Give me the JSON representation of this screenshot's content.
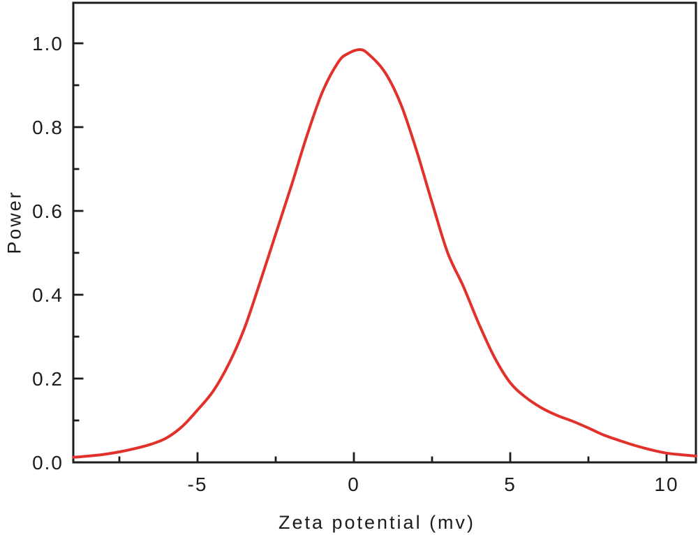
{
  "colors": {
    "curve": "#e2312b",
    "axis": "#1c1c1c",
    "background": "#ffffff",
    "text": "#1c1c1c"
  },
  "chart_data": {
    "type": "line",
    "title": "",
    "xlabel": "Zeta potential (mv)",
    "ylabel": "Power",
    "xlim": [
      -8.97,
      10.94
    ],
    "ylim": [
      0,
      1.09
    ],
    "grid": false,
    "legend": "none",
    "frame": "full-box",
    "x_ticks": {
      "major": [
        -5,
        0,
        5,
        10
      ],
      "minor": [
        -7.5,
        -2.5,
        2.5,
        7.5
      ],
      "labels": [
        "-5",
        "0",
        "5",
        "10"
      ]
    },
    "y_ticks": {
      "major": [
        0,
        0.2,
        0.4,
        0.6,
        0.8,
        1.0
      ],
      "minor": [
        0.1,
        0.3,
        0.5,
        0.7,
        0.9
      ],
      "labels": [
        "0.0",
        "0.2",
        "0.4",
        "0.6",
        "0.8",
        "1.0"
      ]
    },
    "peak": {
      "x": 0.2,
      "y": 0.985
    },
    "series": [
      {
        "name": "Power",
        "color": "#e2312b",
        "x": [
          -8.97,
          -8.5,
          -8.0,
          -7.5,
          -7.0,
          -6.5,
          -6.0,
          -5.5,
          -5.0,
          -4.5,
          -4.0,
          -3.5,
          -3.0,
          -2.5,
          -2.0,
          -1.5,
          -1.0,
          -0.5,
          -0.2,
          0.2,
          0.5,
          1.0,
          1.5,
          2.0,
          2.5,
          3.0,
          3.5,
          4.0,
          4.5,
          5.0,
          5.5,
          6.0,
          6.5,
          7.0,
          7.5,
          8.0,
          8.5,
          9.0,
          9.5,
          10.0,
          10.5,
          10.94
        ],
        "y": [
          0.012,
          0.015,
          0.019,
          0.025,
          0.033,
          0.043,
          0.058,
          0.085,
          0.125,
          0.17,
          0.235,
          0.32,
          0.43,
          0.545,
          0.66,
          0.78,
          0.885,
          0.955,
          0.975,
          0.985,
          0.972,
          0.93,
          0.855,
          0.745,
          0.62,
          0.5,
          0.42,
          0.33,
          0.25,
          0.19,
          0.155,
          0.13,
          0.112,
          0.098,
          0.082,
          0.065,
          0.052,
          0.04,
          0.03,
          0.022,
          0.018,
          0.015
        ]
      }
    ]
  }
}
